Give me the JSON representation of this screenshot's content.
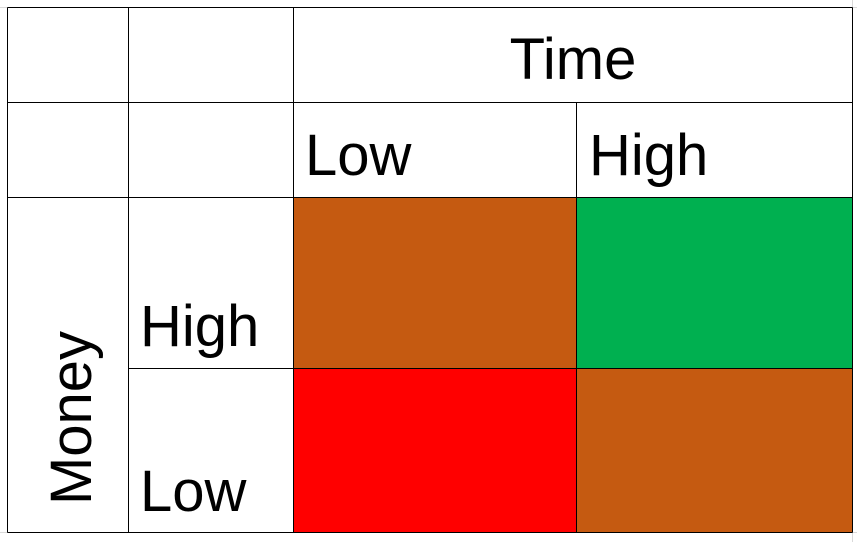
{
  "header": {
    "title": "Time",
    "columns": [
      "Low",
      "High"
    ]
  },
  "row_title": "Money",
  "rows": [
    {
      "label": "High",
      "colors": [
        "#c55a11",
        "#00b050"
      ]
    },
    {
      "label": "Low",
      "colors": [
        "#ff0000",
        "#c55a11"
      ]
    }
  ]
}
